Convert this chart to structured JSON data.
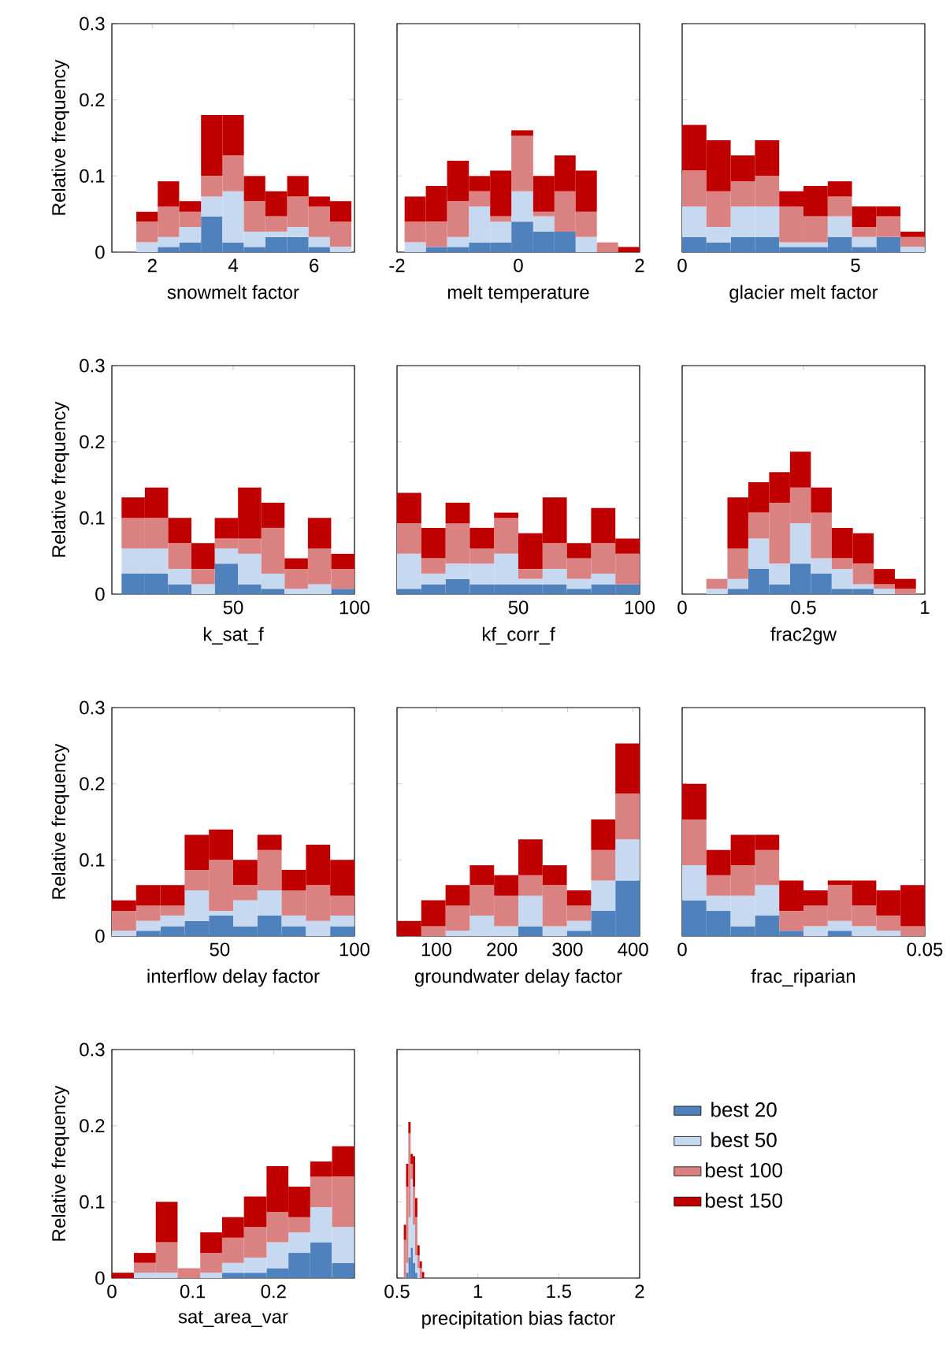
{
  "chart_data": [
    {
      "type": "bar",
      "stacked": true,
      "xlabel": "snowmelt factor",
      "ylabel": "Relative frequency",
      "xlim": [
        1,
        7
      ],
      "xticks": [
        2,
        4,
        6
      ],
      "ylim": [
        0,
        0.3
      ],
      "yticks": [
        0,
        0.1,
        0.2,
        0.3
      ],
      "x": [
        1.87,
        2.4,
        2.93,
        3.47,
        4.0,
        4.53,
        5.06,
        5.6,
        6.13,
        6.66
      ],
      "series": [
        {
          "color": "#4f81bd",
          "values": [
            0,
            0.007,
            0.013,
            0.047,
            0.013,
            0.007,
            0.02,
            0.02,
            0.007,
            0
          ]
        },
        {
          "color": "#c6d9f0",
          "values": [
            0.013,
            0.013,
            0.02,
            0.026,
            0.067,
            0.02,
            0.007,
            0.013,
            0.013,
            0.007
          ]
        },
        {
          "color": "#da8282",
          "values": [
            0.027,
            0.04,
            0.02,
            0.027,
            0.047,
            0.04,
            0.02,
            0.04,
            0.04,
            0.033
          ]
        },
        {
          "color": "#c00000",
          "values": [
            0.013,
            0.033,
            0.014,
            0.08,
            0.053,
            0.033,
            0.033,
            0.027,
            0.013,
            0.027
          ]
        }
      ]
    },
    {
      "type": "bar",
      "stacked": true,
      "xlabel": "melt temperature",
      "xlim": [
        -2,
        2
      ],
      "xticks": [
        -2,
        0,
        2
      ],
      "ylim": [
        0,
        0.3
      ],
      "yticks": [
        0,
        0.1,
        0.2,
        0.3
      ],
      "tick_labels": "x",
      "x": [
        -1.7,
        -1.35,
        -1.0,
        -0.64,
        -0.29,
        0.06,
        0.42,
        0.77,
        1.12,
        1.47,
        1.82
      ],
      "series": [
        {
          "color": "#4f81bd",
          "values": [
            0,
            0.007,
            0.007,
            0.013,
            0.013,
            0.04,
            0.027,
            0.027,
            0,
            0,
            0
          ]
        },
        {
          "color": "#c6d9f0",
          "values": [
            0.013,
            0,
            0.013,
            0.047,
            0.027,
            0.04,
            0.02,
            0,
            0.02,
            0,
            0
          ]
        },
        {
          "color": "#da8282",
          "values": [
            0.027,
            0.033,
            0.047,
            0.02,
            0.007,
            0.073,
            0.006,
            0.053,
            0.033,
            0.013,
            0
          ]
        },
        {
          "color": "#c00000",
          "values": [
            0.033,
            0.047,
            0.053,
            0.02,
            0.06,
            0.007,
            0.047,
            0.047,
            0.054,
            0,
            0.007
          ]
        }
      ]
    },
    {
      "type": "bar",
      "stacked": true,
      "xlabel": "glacier melt factor",
      "xlim": [
        0,
        7
      ],
      "xticks": [
        0,
        5
      ],
      "ylim": [
        0,
        0.3
      ],
      "yticks": [
        0,
        0.1,
        0.2,
        0.3
      ],
      "tick_labels": "x",
      "x": [
        0.35,
        1.05,
        1.75,
        2.45,
        3.15,
        3.85,
        4.55,
        5.25,
        5.95,
        6.65
      ],
      "series": [
        {
          "color": "#4f81bd",
          "values": [
            0.02,
            0.013,
            0.02,
            0.02,
            0.007,
            0.007,
            0.02,
            0.007,
            0.02,
            0
          ]
        },
        {
          "color": "#c6d9f0",
          "values": [
            0.04,
            0.02,
            0.04,
            0.04,
            0.006,
            0.006,
            0.027,
            0.013,
            0,
            0.007
          ]
        },
        {
          "color": "#da8282",
          "values": [
            0.047,
            0.047,
            0.033,
            0.04,
            0.047,
            0.034,
            0.026,
            0.013,
            0.027,
            0.013
          ]
        },
        {
          "color": "#c00000",
          "values": [
            0.06,
            0.067,
            0.034,
            0.047,
            0.02,
            0.04,
            0.02,
            0.027,
            0.013,
            0.007
          ]
        }
      ]
    },
    {
      "type": "bar",
      "stacked": true,
      "xlabel": "k_sat_f",
      "ylabel": "Relative frequency",
      "xlim": [
        0,
        100
      ],
      "xticks": [
        50,
        100
      ],
      "ylim": [
        0,
        0.3
      ],
      "yticks": [
        0,
        0.1,
        0.2,
        0.3
      ],
      "x": [
        8.8,
        18.4,
        28,
        37.6,
        47.2,
        56.8,
        66.4,
        76,
        85.6,
        95.2
      ],
      "series": [
        {
          "color": "#4f81bd",
          "values": [
            0.027,
            0.027,
            0.013,
            0,
            0.04,
            0.013,
            0.007,
            0,
            0,
            0.007
          ]
        },
        {
          "color": "#c6d9f0",
          "values": [
            0.033,
            0.033,
            0.02,
            0.013,
            0.02,
            0.04,
            0.02,
            0.007,
            0.013,
            0
          ]
        },
        {
          "color": "#da8282",
          "values": [
            0.04,
            0.04,
            0.034,
            0.02,
            0.013,
            0.02,
            0.06,
            0.026,
            0.047,
            0.026
          ]
        },
        {
          "color": "#c00000",
          "values": [
            0.027,
            0.04,
            0.033,
            0.034,
            0.027,
            0.067,
            0.033,
            0.014,
            0.04,
            0.02
          ]
        }
      ]
    },
    {
      "type": "bar",
      "stacked": true,
      "xlabel": "kf_corr_f",
      "xlim": [
        0,
        100
      ],
      "xticks": [
        50,
        100
      ],
      "ylim": [
        0,
        0.3
      ],
      "yticks": [
        0,
        0.1,
        0.2,
        0.3
      ],
      "tick_labels": "x",
      "x": [
        5,
        15,
        25,
        35,
        45,
        55,
        65,
        75,
        85,
        95
      ],
      "series": [
        {
          "color": "#4f81bd",
          "values": [
            0.007,
            0.013,
            0.02,
            0.013,
            0.013,
            0.013,
            0.013,
            0.007,
            0.013,
            0.013
          ]
        },
        {
          "color": "#c6d9f0",
          "values": [
            0.046,
            0.014,
            0.02,
            0.027,
            0.04,
            0.007,
            0.02,
            0.013,
            0.014,
            0
          ]
        },
        {
          "color": "#da8282",
          "values": [
            0.04,
            0.02,
            0.053,
            0.02,
            0.047,
            0.013,
            0.034,
            0.027,
            0.04,
            0.04
          ]
        },
        {
          "color": "#c00000",
          "values": [
            0.04,
            0.04,
            0.027,
            0.027,
            0.007,
            0.047,
            0.06,
            0.02,
            0.046,
            0.02
          ]
        }
      ]
    },
    {
      "type": "bar",
      "stacked": true,
      "xlabel": "frac2gw",
      "xlim": [
        0,
        1
      ],
      "xticks": [
        0,
        0.5,
        1
      ],
      "ylim": [
        0,
        0.3
      ],
      "yticks": [
        0,
        0.1,
        0.2,
        0.3
      ],
      "tick_labels": "x",
      "x": [
        0.143,
        0.23,
        0.316,
        0.402,
        0.488,
        0.574,
        0.66,
        0.747,
        0.833,
        0.92
      ],
      "series": [
        {
          "color": "#4f81bd",
          "values": [
            0,
            0.007,
            0.033,
            0.013,
            0.04,
            0.027,
            0.007,
            0.007,
            0,
            0
          ]
        },
        {
          "color": "#c6d9f0",
          "values": [
            0.007,
            0.013,
            0.04,
            0.027,
            0.053,
            0.02,
            0.026,
            0.006,
            0.007,
            0
          ]
        },
        {
          "color": "#da8282",
          "values": [
            0.013,
            0.04,
            0.034,
            0.08,
            0.047,
            0.06,
            0.014,
            0.027,
            0.006,
            0.007
          ]
        },
        {
          "color": "#c00000",
          "values": [
            0,
            0.067,
            0.04,
            0.04,
            0.047,
            0.033,
            0.04,
            0.04,
            0.02,
            0.013
          ]
        }
      ]
    },
    {
      "type": "bar",
      "stacked": true,
      "xlabel": "interflow delay factor",
      "ylabel": "Relative frequency",
      "xlim": [
        10,
        100
      ],
      "xticks": [
        50,
        100
      ],
      "ylim": [
        0,
        0.3
      ],
      "yticks": [
        0,
        0.1,
        0.2,
        0.3
      ],
      "x": [
        14.5,
        23.5,
        32.5,
        41.5,
        50.5,
        59.5,
        68.5,
        77.5,
        86.5,
        95.5
      ],
      "series": [
        {
          "color": "#4f81bd",
          "values": [
            0,
            0.007,
            0.013,
            0.02,
            0.027,
            0.013,
            0.027,
            0.013,
            0,
            0.013
          ]
        },
        {
          "color": "#c6d9f0",
          "values": [
            0.007,
            0.013,
            0.014,
            0.04,
            0.006,
            0.034,
            0.033,
            0.014,
            0.02,
            0.014
          ]
        },
        {
          "color": "#da8282",
          "values": [
            0.026,
            0.02,
            0.013,
            0.027,
            0.067,
            0.02,
            0.053,
            0.033,
            0.047,
            0.026
          ]
        },
        {
          "color": "#c00000",
          "values": [
            0.014,
            0.027,
            0.027,
            0.046,
            0.04,
            0.033,
            0.02,
            0.027,
            0.053,
            0.047
          ]
        }
      ]
    },
    {
      "type": "bar",
      "stacked": true,
      "xlabel": "groundwater delay factor",
      "xlim": [
        40,
        410
      ],
      "xticks": [
        100,
        200,
        300,
        400
      ],
      "ylim": [
        0,
        0.3
      ],
      "yticks": [
        0,
        0.1,
        0.2,
        0.3
      ],
      "tick_labels": "x",
      "x": [
        58.5,
        95.5,
        132.5,
        169.5,
        206.5,
        243.5,
        280.5,
        317.5,
        354.5,
        391.5
      ],
      "series": [
        {
          "color": "#4f81bd",
          "values": [
            0,
            0,
            0,
            0,
            0,
            0.013,
            0,
            0.007,
            0.033,
            0.073
          ]
        },
        {
          "color": "#c6d9f0",
          "values": [
            0,
            0,
            0.007,
            0.027,
            0.013,
            0.04,
            0.013,
            0.013,
            0.04,
            0.054
          ]
        },
        {
          "color": "#da8282",
          "values": [
            0,
            0.013,
            0.033,
            0.04,
            0.04,
            0.027,
            0.054,
            0.02,
            0.04,
            0.06
          ]
        },
        {
          "color": "#c00000",
          "values": [
            0.02,
            0.034,
            0.027,
            0.026,
            0.027,
            0.047,
            0.026,
            0.02,
            0.04,
            0.066
          ]
        }
      ]
    },
    {
      "type": "bar",
      "stacked": true,
      "xlabel": "frac_riparian",
      "xlim": [
        0,
        0.05
      ],
      "xticks": [
        0,
        0.05
      ],
      "ylim": [
        0,
        0.3
      ],
      "yticks": [
        0,
        0.1,
        0.2,
        0.3
      ],
      "tick_labels": "x",
      "x": [
        0.0025,
        0.0075,
        0.0125,
        0.0175,
        0.0225,
        0.0275,
        0.0325,
        0.0375,
        0.0425,
        0.0475
      ],
      "series": [
        {
          "color": "#4f81bd",
          "values": [
            0.047,
            0.033,
            0.013,
            0.027,
            0.007,
            0,
            0.007,
            0,
            0,
            0
          ]
        },
        {
          "color": "#c6d9f0",
          "values": [
            0.046,
            0.02,
            0.04,
            0.04,
            0,
            0.013,
            0.013,
            0.013,
            0.007,
            0
          ]
        },
        {
          "color": "#da8282",
          "values": [
            0.06,
            0.027,
            0.04,
            0.046,
            0.026,
            0.027,
            0.047,
            0.027,
            0.02,
            0.013
          ]
        },
        {
          "color": "#c00000",
          "values": [
            0.047,
            0.033,
            0.04,
            0.02,
            0.04,
            0.02,
            0.006,
            0.033,
            0.033,
            0.054
          ]
        }
      ]
    },
    {
      "type": "bar",
      "stacked": true,
      "xlabel": "sat_area_var",
      "ylabel": "Relative frequency",
      "xlim": [
        0,
        0.3
      ],
      "xticks": [
        0,
        0.1,
        0.2
      ],
      "ylim": [
        0,
        0.3
      ],
      "yticks": [
        0,
        0.1,
        0.2,
        0.3
      ],
      "x": [
        0.0136,
        0.041,
        0.068,
        0.095,
        0.123,
        0.15,
        0.177,
        0.205,
        0.232,
        0.259,
        0.286
      ],
      "series": [
        {
          "color": "#4f81bd",
          "values": [
            0,
            0,
            0,
            0,
            0,
            0.007,
            0.007,
            0.013,
            0.033,
            0.047,
            0.02
          ]
        },
        {
          "color": "#c6d9f0",
          "values": [
            0,
            0.007,
            0.007,
            0,
            0.007,
            0.013,
            0.02,
            0.034,
            0.027,
            0.046,
            0.047
          ]
        },
        {
          "color": "#da8282",
          "values": [
            0,
            0.013,
            0.04,
            0.013,
            0.026,
            0.033,
            0.04,
            0.04,
            0.02,
            0.04,
            0.066
          ]
        },
        {
          "color": "#c00000",
          "values": [
            0.007,
            0.013,
            0.053,
            0,
            0.027,
            0.027,
            0.04,
            0.06,
            0.04,
            0.02,
            0.04
          ]
        }
      ]
    },
    {
      "type": "bar",
      "stacked": true,
      "xlabel": "precipitation bias factor",
      "xlim": [
        0.5,
        2
      ],
      "xticks": [
        0.5,
        1,
        1.5,
        2
      ],
      "ylim": [
        0,
        0.3
      ],
      "yticks": [
        0,
        0.1,
        0.2,
        0.3
      ],
      "tick_labels": "x",
      "legend": "right",
      "x": [
        0.549,
        0.563,
        0.577,
        0.591,
        0.605,
        0.619,
        0.633,
        0.647,
        0.661,
        0.675
      ],
      "series": [
        {
          "name": "best 20",
          "color": "#4f81bd",
          "values": [
            0,
            0.007,
            0.027,
            0.04,
            0.02,
            0.007,
            0,
            0,
            0,
            0
          ]
        },
        {
          "name": "best 50",
          "color": "#c6d9f0",
          "values": [
            0,
            0.013,
            0.053,
            0.09,
            0.05,
            0.023,
            0.013,
            0,
            0,
            0
          ]
        },
        {
          "name": "best 100",
          "color": "#da8282",
          "values": [
            0.05,
            0.1,
            0.11,
            0.02,
            0.05,
            0.05,
            0.017,
            0.013,
            0,
            0
          ]
        },
        {
          "name": "best 150",
          "color": "#c00000",
          "values": [
            0.02,
            0.03,
            0.015,
            0.013,
            0.04,
            0.025,
            0.013,
            0.009,
            0.008,
            0
          ]
        }
      ]
    }
  ]
}
